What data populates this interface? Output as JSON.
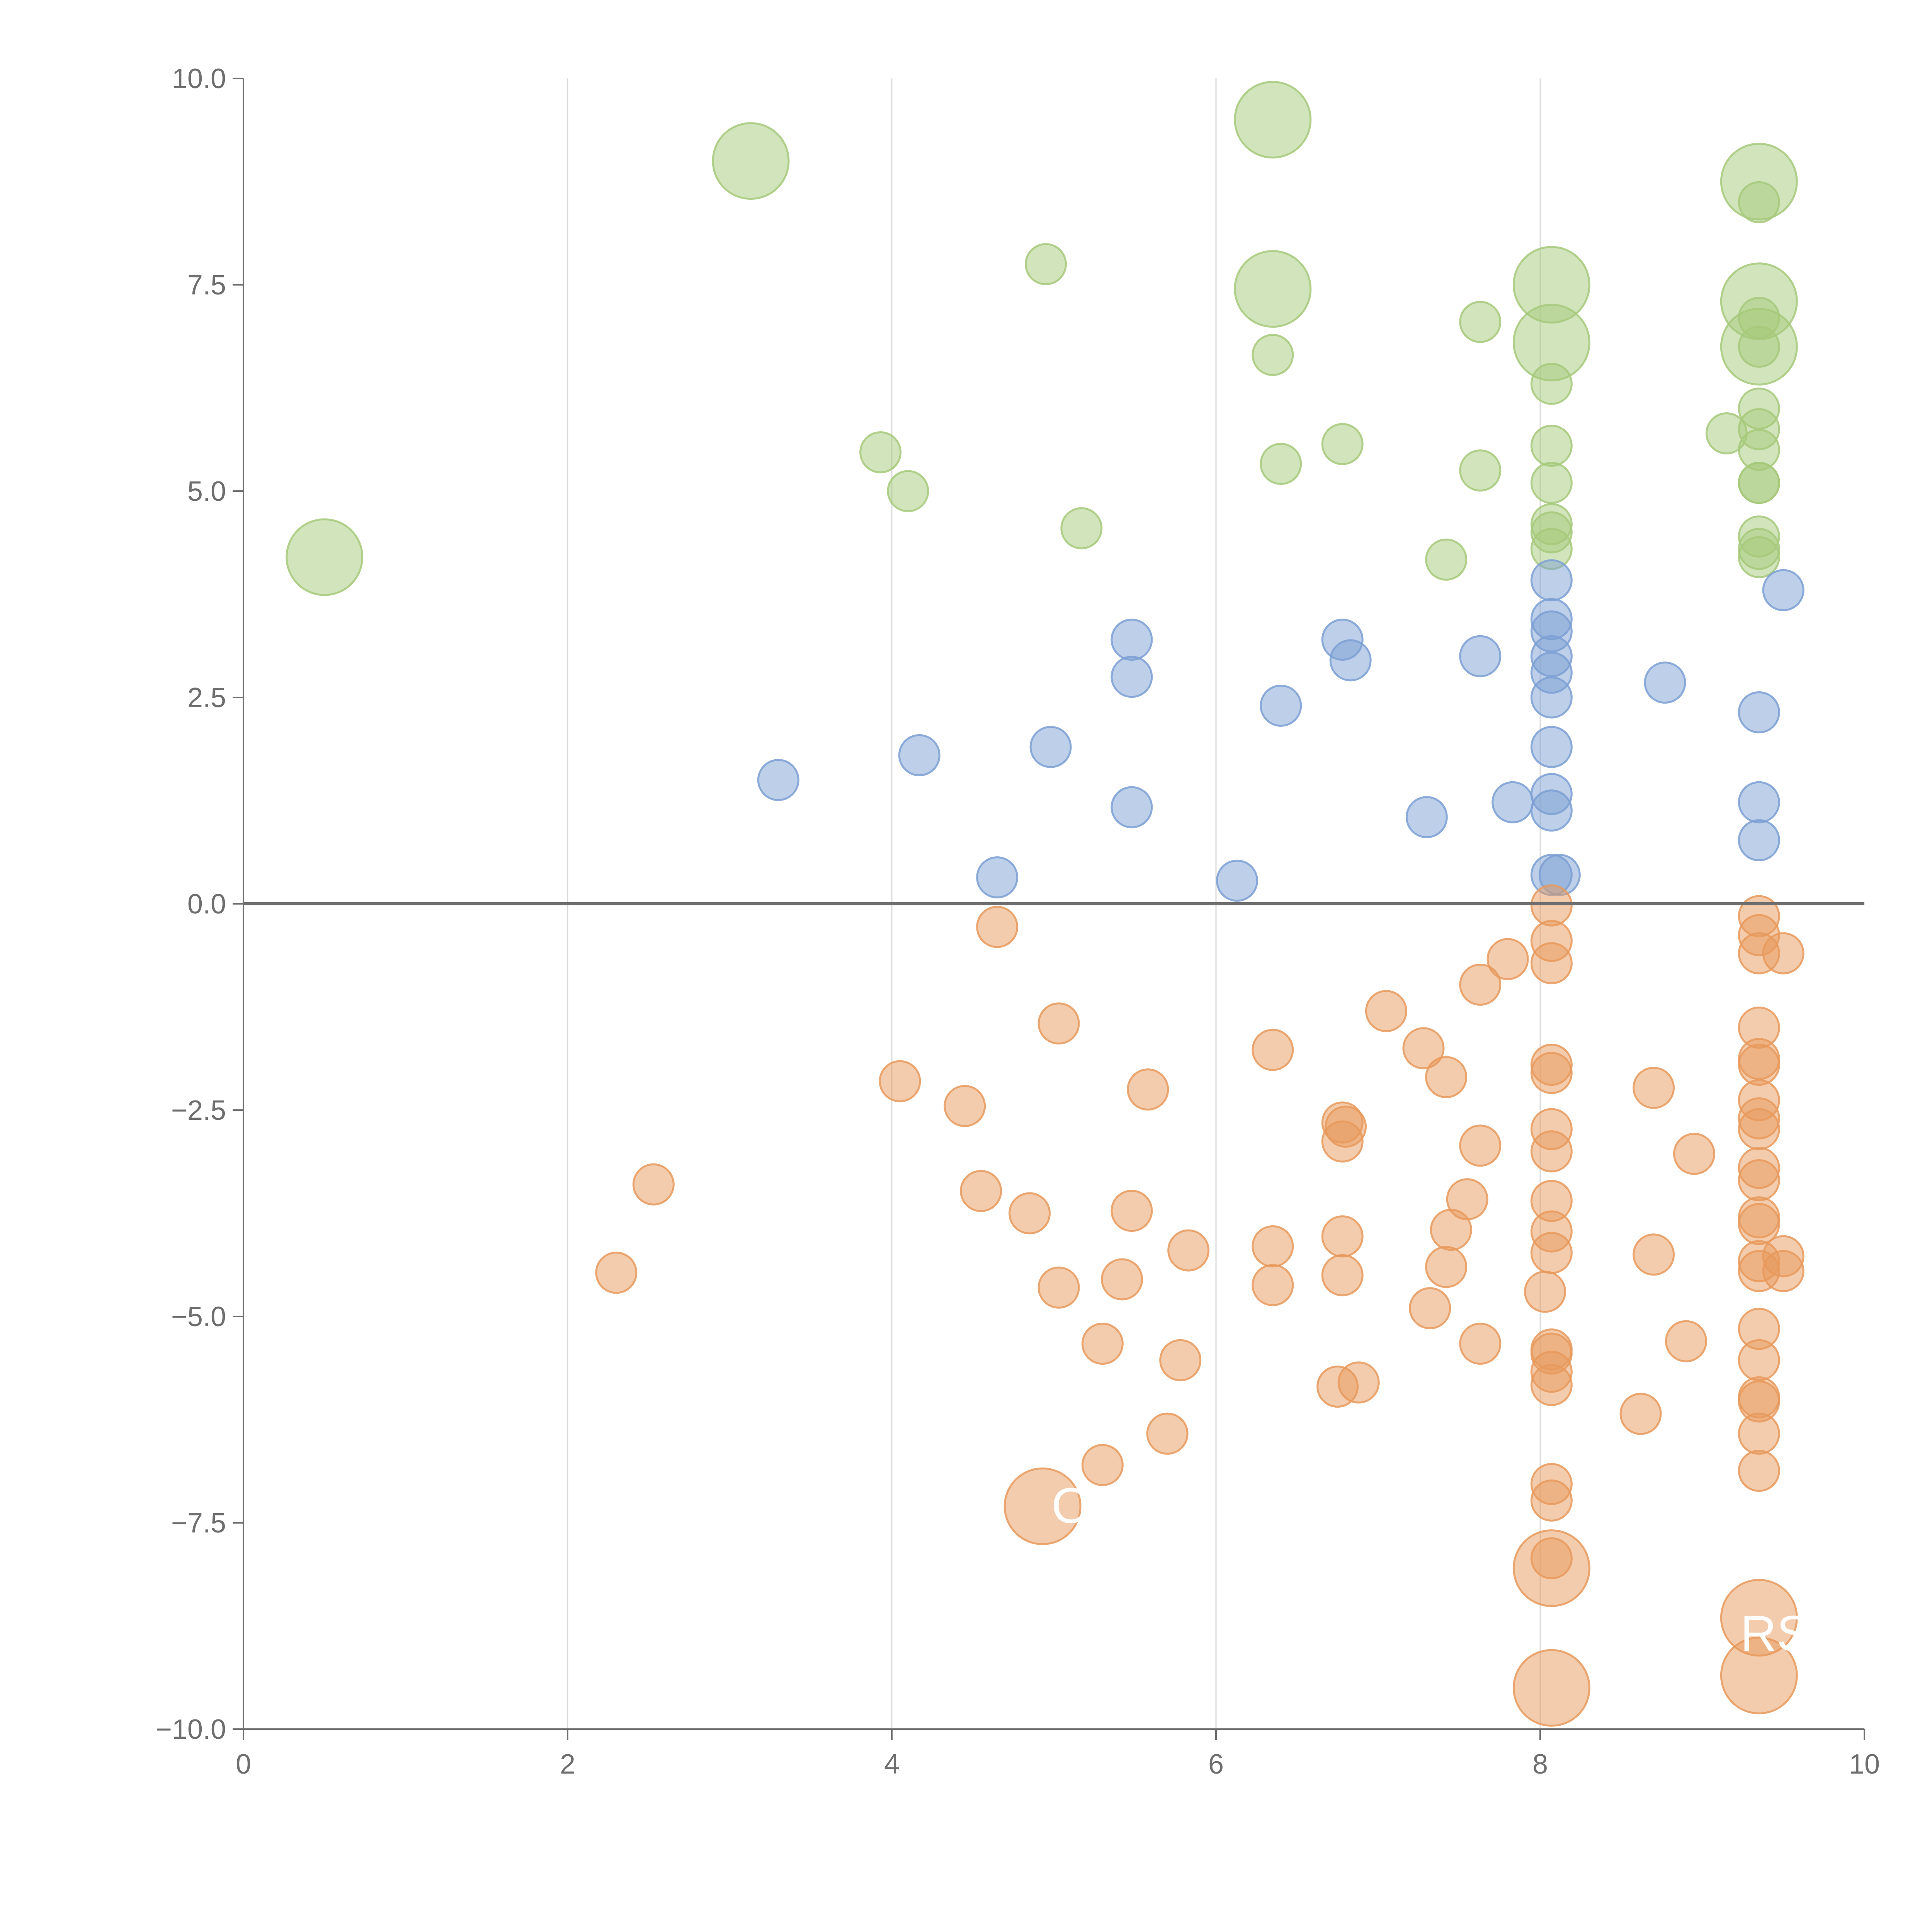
{
  "chart_data": {
    "type": "scatter",
    "title": "",
    "xlabel": "",
    "ylabel": "",
    "xlim": [
      0,
      10
    ],
    "ylim": [
      -10,
      10
    ],
    "x_ticks": [
      0,
      2,
      4,
      6,
      8,
      10
    ],
    "x_tick_labels": [
      "0",
      "2",
      "4",
      "6",
      "8",
      "10"
    ],
    "y_ticks": [
      10,
      7.5,
      5,
      2.5,
      0,
      -2.5,
      -5,
      -7.5,
      -10
    ],
    "y_tick_labels": [
      "10.0",
      "7.5",
      "5.0",
      "2.5",
      "0.0",
      "−2.5",
      "−5.0",
      "−7.5",
      "−10.0"
    ],
    "vertical_gridlines_at": [
      2,
      4,
      6,
      8
    ],
    "reference_line_y": 0,
    "colors": {
      "green": "#a6c97a",
      "blue": "#7b9fd4",
      "orange": "#e8995c",
      "axis": "#6e6e6e",
      "grid": "#d9d9d9"
    },
    "series": [
      {
        "name": "green",
        "color": "#a6c97a",
        "points": [
          [
            0.5,
            4.2,
            "L"
          ],
          [
            3.13,
            9.0,
            "L"
          ],
          [
            6.35,
            9.5,
            "L"
          ],
          [
            6.35,
            7.45,
            "L"
          ],
          [
            8.07,
            7.5,
            "L"
          ],
          [
            8.07,
            6.8,
            "L"
          ],
          [
            9.35,
            8.75,
            "L"
          ],
          [
            9.35,
            7.3,
            "L"
          ],
          [
            9.35,
            6.75,
            "L"
          ],
          [
            4.95,
            7.75
          ],
          [
            3.93,
            5.47
          ],
          [
            4.1,
            5.0
          ],
          [
            5.17,
            4.55
          ],
          [
            6.35,
            6.65
          ],
          [
            6.4,
            5.33
          ],
          [
            6.78,
            5.57
          ],
          [
            7.63,
            7.05
          ],
          [
            7.63,
            5.25
          ],
          [
            7.42,
            4.17
          ],
          [
            9.15,
            5.7
          ],
          [
            8.07,
            6.3
          ],
          [
            8.07,
            5.55
          ],
          [
            8.07,
            5.1
          ],
          [
            8.07,
            4.6
          ],
          [
            8.07,
            4.5
          ],
          [
            8.07,
            4.3
          ],
          [
            9.35,
            8.5
          ],
          [
            9.35,
            7.1
          ],
          [
            9.35,
            6.75
          ],
          [
            9.35,
            6.0
          ],
          [
            9.35,
            5.75
          ],
          [
            9.35,
            5.5
          ],
          [
            9.35,
            5.1
          ],
          [
            9.35,
            5.1
          ],
          [
            9.35,
            4.45
          ],
          [
            9.35,
            4.3
          ],
          [
            9.35,
            4.2
          ]
        ]
      },
      {
        "name": "blue",
        "color": "#7b9fd4",
        "points": [
          [
            3.3,
            1.5
          ],
          [
            4.17,
            1.8
          ],
          [
            4.98,
            1.9
          ],
          [
            4.65,
            0.32
          ],
          [
            5.48,
            3.2
          ],
          [
            5.48,
            2.75
          ],
          [
            5.48,
            1.17
          ],
          [
            6.13,
            0.28
          ],
          [
            6.4,
            2.4
          ],
          [
            6.78,
            3.2
          ],
          [
            6.83,
            2.95
          ],
          [
            7.3,
            1.05
          ],
          [
            7.63,
            3.0
          ],
          [
            7.83,
            1.23
          ],
          [
            8.77,
            2.68
          ],
          [
            8.07,
            3.92
          ],
          [
            8.07,
            3.45
          ],
          [
            8.07,
            3.3
          ],
          [
            8.07,
            3.0
          ],
          [
            8.07,
            2.8
          ],
          [
            8.07,
            2.5
          ],
          [
            8.07,
            1.9
          ],
          [
            8.07,
            1.33
          ],
          [
            8.07,
            1.13
          ],
          [
            8.07,
            0.35
          ],
          [
            8.12,
            0.35
          ],
          [
            9.35,
            2.32
          ],
          [
            9.35,
            1.23
          ],
          [
            9.35,
            0.77
          ],
          [
            9.5,
            3.8
          ]
        ]
      },
      {
        "name": "orange",
        "color": "#e8995c",
        "points": [
          [
            2.53,
            -3.4
          ],
          [
            2.3,
            -4.47
          ],
          [
            4.05,
            -2.15
          ],
          [
            4.45,
            -2.45
          ],
          [
            4.55,
            -3.48
          ],
          [
            4.65,
            -0.28
          ],
          [
            4.85,
            -3.75
          ],
          [
            5.03,
            -1.45
          ],
          [
            5.03,
            -4.65
          ],
          [
            5.3,
            -5.33
          ],
          [
            5.3,
            -6.8
          ],
          [
            5.42,
            -4.55
          ],
          [
            5.48,
            -3.72
          ],
          [
            5.58,
            -2.25
          ],
          [
            5.7,
            -6.42
          ],
          [
            5.78,
            -5.53
          ],
          [
            5.83,
            -4.2
          ],
          [
            6.35,
            -1.77
          ],
          [
            6.35,
            -4.15
          ],
          [
            6.35,
            -4.62
          ],
          [
            6.78,
            -2.65
          ],
          [
            6.8,
            -2.7
          ],
          [
            6.78,
            -2.88
          ],
          [
            6.78,
            -4.03
          ],
          [
            6.78,
            -4.5
          ],
          [
            6.75,
            -5.85
          ],
          [
            6.88,
            -5.8
          ],
          [
            7.05,
            -1.3
          ],
          [
            7.28,
            -1.75
          ],
          [
            7.32,
            -4.9
          ],
          [
            7.42,
            -2.1
          ],
          [
            7.42,
            -4.4
          ],
          [
            7.45,
            -3.95
          ],
          [
            7.55,
            -3.58
          ],
          [
            7.63,
            -0.98
          ],
          [
            7.63,
            -2.93
          ],
          [
            7.63,
            -5.33
          ],
          [
            7.8,
            -0.67
          ],
          [
            8.62,
            -6.18
          ],
          [
            8.7,
            -2.23
          ],
          [
            8.7,
            -4.25
          ],
          [
            8.9,
            -5.3
          ],
          [
            8.95,
            -3.03
          ],
          [
            9.5,
            -0.6
          ],
          [
            9.5,
            -4.27
          ],
          [
            9.5,
            -4.45
          ],
          [
            8.07,
            -0.02
          ],
          [
            8.07,
            -0.45
          ],
          [
            8.07,
            -0.72
          ],
          [
            8.07,
            -1.95
          ],
          [
            8.07,
            -2.05
          ],
          [
            8.07,
            -2.73
          ],
          [
            8.07,
            -3.0
          ],
          [
            8.07,
            -3.6
          ],
          [
            8.07,
            -3.97
          ],
          [
            8.07,
            -4.23
          ],
          [
            8.03,
            -4.7
          ],
          [
            8.07,
            -5.4
          ],
          [
            8.07,
            -5.45
          ],
          [
            8.07,
            -5.67
          ],
          [
            8.07,
            -5.83
          ],
          [
            8.07,
            -7.03
          ],
          [
            8.07,
            -7.23
          ],
          [
            8.07,
            -7.93
          ],
          [
            9.35,
            -0.15
          ],
          [
            9.35,
            -0.38
          ],
          [
            9.35,
            -0.6
          ],
          [
            9.35,
            -1.5
          ],
          [
            9.35,
            -1.88
          ],
          [
            9.35,
            -1.95
          ],
          [
            9.35,
            -2.38
          ],
          [
            9.35,
            -2.6
          ],
          [
            9.35,
            -2.73
          ],
          [
            9.35,
            -3.2
          ],
          [
            9.35,
            -3.35
          ],
          [
            9.35,
            -3.8
          ],
          [
            9.35,
            -3.88
          ],
          [
            9.35,
            -4.33
          ],
          [
            9.35,
            -4.45
          ],
          [
            9.35,
            -5.15
          ],
          [
            9.35,
            -5.53
          ],
          [
            9.35,
            -5.98
          ],
          [
            9.35,
            -6.03
          ],
          [
            9.35,
            -6.42
          ],
          [
            9.35,
            -6.87
          ],
          [
            4.93,
            -7.3,
            "L"
          ],
          [
            8.07,
            -8.05,
            "L"
          ],
          [
            9.35,
            -8.65,
            "L"
          ],
          [
            9.35,
            -9.35,
            "L"
          ],
          [
            8.07,
            -9.5,
            "L"
          ]
        ]
      }
    ],
    "annotations": [
      {
        "text": "OT",
        "x": 5.2,
        "y": -7.5
      },
      {
        "text": "RS",
        "x": 9.45,
        "y": -9.05
      }
    ]
  }
}
